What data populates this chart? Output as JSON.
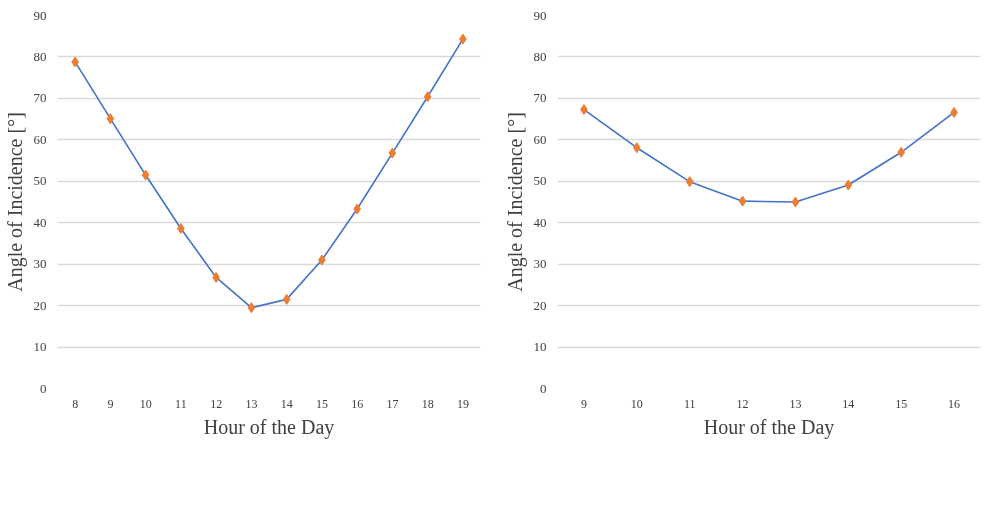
{
  "chart_data": [
    {
      "type": "line",
      "xlabel": "Hour of the Day",
      "ylabel": "Angle of Incidence [°]",
      "categories": [
        "8",
        "9",
        "10",
        "11",
        "12",
        "13",
        "14",
        "15",
        "16",
        "17",
        "18",
        "19"
      ],
      "ylim": [
        0,
        90
      ],
      "yticks": [
        0,
        10,
        20,
        30,
        40,
        50,
        60,
        70,
        80,
        90
      ],
      "grid": "y",
      "series": [
        {
          "color": "#4472c4",
          "values": [
            78.8,
            65.1,
            51.5,
            38.6,
            26.8,
            19.5,
            21.5,
            31.0,
            43.3,
            56.8,
            70.4,
            84.3
          ]
        },
        {
          "type": "scatter",
          "marker": "diamond",
          "color": "#ed7d31",
          "values": [
            78.8,
            65.1,
            51.5,
            38.6,
            26.8,
            19.5,
            21.5,
            31.0,
            43.3,
            56.8,
            70.4,
            84.3
          ]
        }
      ]
    },
    {
      "type": "line",
      "xlabel": "Hour of the Day",
      "ylabel": "Angle of Incidence [°]",
      "categories": [
        "9",
        "10",
        "11",
        "12",
        "13",
        "14",
        "15",
        "16"
      ],
      "ylim": [
        0,
        90
      ],
      "yticks": [
        0,
        10,
        20,
        30,
        40,
        50,
        60,
        70,
        80,
        90
      ],
      "grid": "y",
      "series": [
        {
          "color": "#4472c4",
          "values": [
            67.3,
            58.1,
            49.9,
            45.2,
            45.0,
            49.1,
            57.0,
            66.6
          ]
        },
        {
          "type": "scatter",
          "marker": "diamond",
          "color": "#ed7d31",
          "values": [
            67.3,
            58.1,
            49.9,
            45.2,
            45.0,
            49.1,
            57.0,
            66.6
          ]
        }
      ]
    }
  ]
}
